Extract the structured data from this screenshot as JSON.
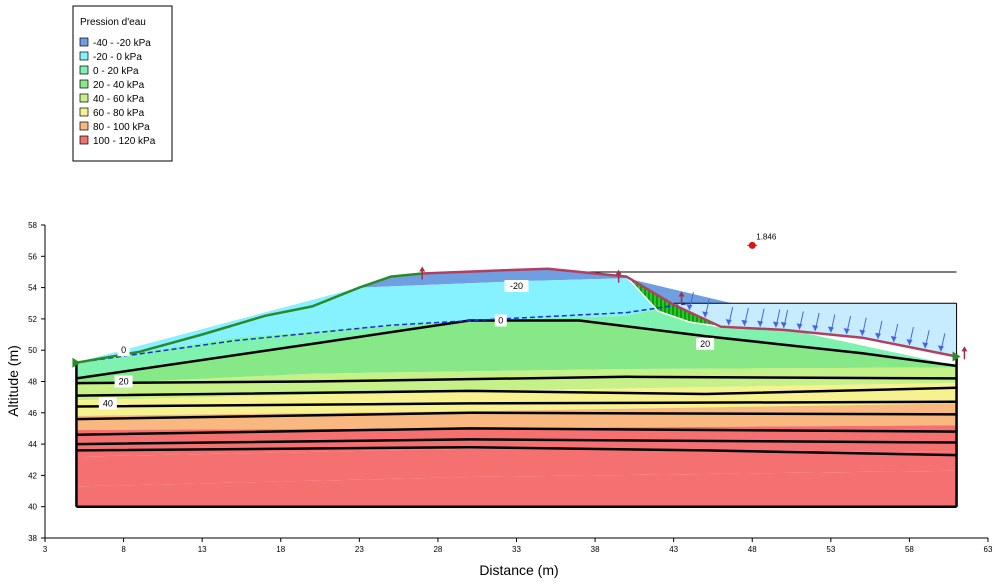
{
  "chart_data": {
    "type": "area",
    "xlabel": "Distance (m)",
    "ylabel": "Altitude (m)",
    "xlim": [
      3,
      63
    ],
    "ylim": [
      38,
      58
    ],
    "x_ticks": [
      "3",
      "8",
      "13",
      "18",
      "23",
      "28",
      "33",
      "38",
      "43",
      "48",
      "53",
      "58",
      "63"
    ],
    "y_ticks": [
      "38",
      "40",
      "42",
      "44",
      "46",
      "48",
      "50",
      "52",
      "54",
      "56",
      "58"
    ],
    "legend": {
      "title": "Pression d'eau",
      "placement": "top-left",
      "entries": [
        {
          "label": "-40 - -20 kPa",
          "color": "#6f9fe0"
        },
        {
          "label": "-20 - 0 kPa",
          "color": "#86f2ff"
        },
        {
          "label": "0 - 20 kPa",
          "color": "#7ff2b0"
        },
        {
          "label": "20 - 40 kPa",
          "color": "#86e886"
        },
        {
          "label": "40 - 60 kPa",
          "color": "#c6f088"
        },
        {
          "label": "60 - 80 kPa",
          "color": "#f6f290"
        },
        {
          "label": "80 - 100 kPa",
          "color": "#f8b880"
        },
        {
          "label": "100 - 120 kPa",
          "color": "#f57070"
        }
      ]
    },
    "ground_surface": [
      [
        5,
        49.2
      ],
      [
        9,
        49.9
      ],
      [
        13,
        51.0
      ],
      [
        17,
        52.2
      ],
      [
        20,
        52.8
      ],
      [
        23,
        54.0
      ],
      [
        25,
        54.7
      ],
      [
        27,
        54.9
      ],
      [
        32,
        55.1
      ],
      [
        35,
        55.2
      ],
      [
        40,
        54.7
      ],
      [
        43,
        52.9
      ],
      [
        46,
        51.5
      ],
      [
        50,
        51.3
      ],
      [
        55,
        50.8
      ],
      [
        61,
        49.6
      ]
    ],
    "zone_boundaries": [
      [
        [
          5,
          49.2
        ],
        [
          9,
          49.9
        ],
        [
          13,
          51.0
        ],
        [
          17,
          52.2
        ],
        [
          20,
          52.8
        ],
        [
          23,
          54.0
        ],
        [
          25,
          54.7
        ],
        [
          27,
          54.9
        ],
        [
          32,
          55.1
        ],
        [
          35,
          55.2
        ],
        [
          40,
          54.7
        ],
        [
          43,
          52.9
        ],
        [
          46,
          51.5
        ],
        [
          50,
          51.3
        ],
        [
          55,
          50.8
        ],
        [
          61,
          49.6
        ]
      ],
      [
        [
          23,
          54.0
        ],
        [
          33,
          54.4
        ],
        [
          40,
          54.6
        ]
      ],
      [
        [
          5,
          49.2
        ],
        [
          15,
          50.8
        ],
        [
          25,
          51.6
        ],
        [
          30,
          51.9
        ],
        [
          40,
          52.2
        ],
        [
          43,
          52.9
        ]
      ],
      [
        [
          5,
          48.2
        ],
        [
          20,
          50.4
        ],
        [
          30,
          51.9
        ],
        [
          37,
          51.9
        ],
        [
          45,
          50.9
        ],
        [
          55,
          49.8
        ],
        [
          61,
          49.0
        ]
      ],
      [
        [
          5,
          47.8
        ],
        [
          20,
          48.5
        ],
        [
          40,
          48.8
        ],
        [
          61,
          48.9
        ]
      ],
      [
        [
          5,
          46.8
        ],
        [
          30,
          47.4
        ],
        [
          61,
          47.9
        ]
      ],
      [
        [
          5,
          45.8
        ],
        [
          30,
          46.1
        ],
        [
          61,
          46.6
        ]
      ],
      [
        [
          5,
          44.9
        ],
        [
          30,
          45.0
        ],
        [
          61,
          45.2
        ]
      ],
      [
        [
          5,
          43.2
        ],
        [
          30,
          43.7
        ],
        [
          61,
          43.5
        ]
      ],
      [
        [
          5,
          41.3
        ],
        [
          30,
          41.9
        ],
        [
          61,
          42.3
        ]
      ],
      [
        [
          5,
          40.0
        ],
        [
          61,
          40.0
        ]
      ]
    ],
    "stratigraphy_lines": [
      [
        [
          5,
          48.2
        ],
        [
          20,
          50.4
        ],
        [
          30,
          51.9
        ],
        [
          37,
          51.9
        ],
        [
          45,
          50.9
        ],
        [
          55,
          49.8
        ],
        [
          61,
          49.0
        ]
      ],
      [
        [
          5,
          47.9
        ],
        [
          20,
          48.0
        ],
        [
          40,
          48.3
        ],
        [
          61,
          48.2
        ]
      ],
      [
        [
          5,
          47.1
        ],
        [
          30,
          47.4
        ],
        [
          45,
          47.2
        ],
        [
          61,
          47.6
        ]
      ],
      [
        [
          5,
          46.4
        ],
        [
          30,
          46.6
        ],
        [
          61,
          46.7
        ]
      ],
      [
        [
          5,
          45.6
        ],
        [
          30,
          46.0
        ],
        [
          61,
          45.9
        ]
      ],
      [
        [
          5,
          44.6
        ],
        [
          30,
          45.0
        ],
        [
          61,
          44.8
        ]
      ],
      [
        [
          5,
          44.0
        ],
        [
          30,
          44.3
        ],
        [
          61,
          44.1
        ]
      ],
      [
        [
          5,
          43.6
        ],
        [
          30,
          43.8
        ],
        [
          45,
          43.6
        ],
        [
          61,
          43.3
        ]
      ],
      [
        [
          5,
          40.0
        ],
        [
          61,
          40.0
        ]
      ]
    ],
    "piezometric_line": [
      [
        5,
        49.2
      ],
      [
        15,
        50.6
      ],
      [
        25,
        51.6
      ],
      [
        32,
        52.0
      ],
      [
        40,
        52.4
      ],
      [
        44,
        53.0
      ]
    ],
    "pond": {
      "water_level": 53.0,
      "x_range": [
        43,
        61
      ],
      "color": "#c7ecff"
    },
    "reference_line": {
      "y": 55.0,
      "x_range": [
        37,
        61
      ]
    },
    "slip_surface": [
      [
        40,
        54.7
      ],
      [
        43,
        52.9
      ],
      [
        46,
        51.5
      ],
      [
        44,
        51.8
      ],
      [
        42,
        52.5
      ],
      [
        40,
        54.7
      ]
    ],
    "contour_labels": [
      {
        "text": "-20",
        "x": 33,
        "y": 54.1
      },
      {
        "text": "0",
        "x": 32,
        "y": 51.9
      },
      {
        "text": "0",
        "x": 8,
        "y": 50.0
      },
      {
        "text": "20",
        "x": 45,
        "y": 50.4
      },
      {
        "text": "20",
        "x": 8,
        "y": 48.0
      },
      {
        "text": "40",
        "x": 7,
        "y": 46.6
      }
    ],
    "critical_center": {
      "x": 48,
      "y": 56.7,
      "label": "1.846"
    },
    "pressure_arrows_x": [
      44,
      45,
      46.5,
      47.5,
      48.5,
      49.5,
      50,
      51,
      52,
      53,
      54,
      55,
      56,
      57,
      58,
      59,
      60
    ]
  }
}
